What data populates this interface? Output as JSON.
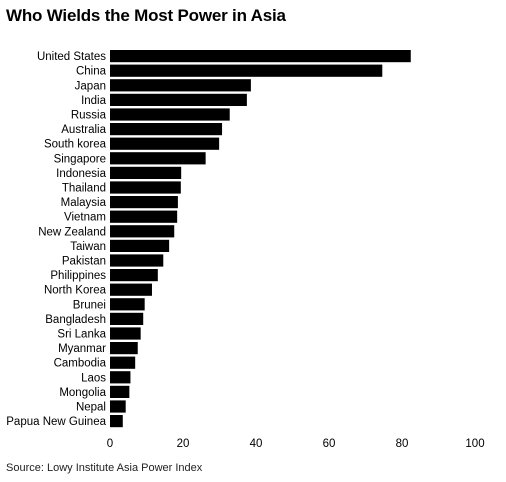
{
  "title": "Who Wields the Most Power in Asia",
  "source": "Source: Lowy Institute Asia Power Index",
  "chart_data": {
    "type": "bar",
    "orientation": "horizontal",
    "categories": [
      "United States",
      "China",
      "Japan",
      "India",
      "Russia",
      "Australia",
      "South korea",
      "Singapore",
      "Indonesia",
      "Thailand",
      "Malaysia",
      "Vietnam",
      "New Zealand",
      "Taiwan",
      "Pakistan",
      "Philippines",
      "North Korea",
      "Brunei",
      "Bangladesh",
      "Sri Lanka",
      "Myanmar",
      "Cambodia",
      "Laos",
      "Mongolia",
      "Nepal",
      "Papua New Guinea"
    ],
    "values": [
      82.4,
      74.6,
      38.6,
      37.5,
      32.8,
      30.7,
      29.9,
      26.2,
      19.5,
      19.4,
      18.6,
      18.4,
      17.6,
      16.2,
      14.6,
      13.1,
      11.5,
      9.5,
      9.1,
      8.4,
      7.6,
      6.9,
      5.6,
      5.3,
      4.3,
      3.5
    ],
    "xticks": [
      0,
      20,
      40,
      60,
      80,
      100
    ],
    "xlim": [
      0,
      100
    ],
    "bar_color": "#000000",
    "grid": false
  }
}
